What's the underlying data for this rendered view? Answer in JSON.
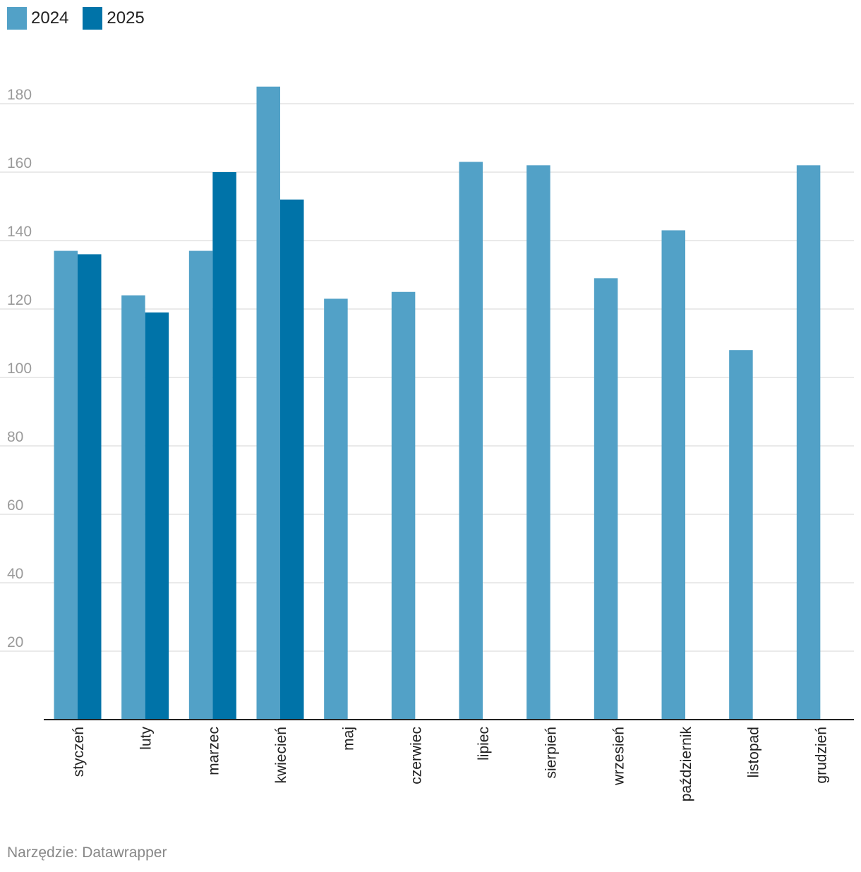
{
  "legend": [
    {
      "label": "2024",
      "color": "#52a1c7"
    },
    {
      "label": "2025",
      "color": "#0073a8"
    }
  ],
  "footer": "Narzędzie: Datawrapper",
  "colors": {
    "grid": "#e3e3e3",
    "axis": "#222222",
    "tick_text": "#9a9a9a",
    "category_text": "#222222"
  },
  "chart_data": {
    "type": "bar",
    "categories": [
      "styczeń",
      "luty",
      "marzec",
      "kwiecień",
      "maj",
      "czerwiec",
      "lipiec",
      "sierpień",
      "wrzesień",
      "październik",
      "listopad",
      "grudzień"
    ],
    "series": [
      {
        "name": "2024",
        "values": [
          137,
          124,
          137,
          185,
          123,
          125,
          163,
          162,
          129,
          143,
          108,
          162
        ]
      },
      {
        "name": "2025",
        "values": [
          136,
          119,
          160,
          152,
          null,
          null,
          null,
          null,
          null,
          null,
          null,
          null
        ]
      }
    ],
    "yticks": [
      20,
      40,
      60,
      80,
      100,
      120,
      140,
      160,
      180
    ],
    "ylim": [
      0,
      190
    ],
    "grid": true,
    "legend_position": "top-left",
    "title": "",
    "xlabel": "",
    "ylabel": ""
  }
}
